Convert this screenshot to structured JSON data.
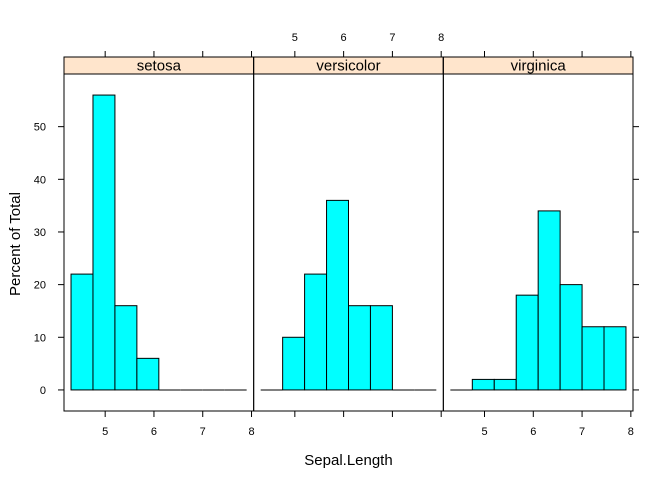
{
  "chart_data": {
    "type": "bar",
    "xlabel": "Sepal.Length",
    "ylabel": "Percent of Total",
    "xlim": [
      4.3,
      7.9
    ],
    "ylim": [
      -4,
      60
    ],
    "x_ticks": [
      5,
      6,
      7,
      8
    ],
    "y_ticks": [
      0,
      10,
      20,
      30,
      40,
      50
    ],
    "bin_edges": [
      4.3,
      4.75,
      5.2,
      5.65,
      6.1,
      6.55,
      7.0,
      7.45,
      7.9
    ],
    "panels": [
      {
        "name": "setosa",
        "values": [
          22,
          56,
          16,
          6,
          0,
          0,
          0,
          0
        ]
      },
      {
        "name": "versicolor",
        "values": [
          0,
          10,
          22,
          36,
          16,
          16,
          0,
          0
        ]
      },
      {
        "name": "virginica",
        "values": [
          0,
          2,
          2,
          18,
          34,
          20,
          12,
          12
        ]
      }
    ],
    "colors": {
      "bar_fill": "#00FFFF",
      "strip_fill": "#FFE5CC",
      "border": "#000000"
    },
    "grid": false
  }
}
